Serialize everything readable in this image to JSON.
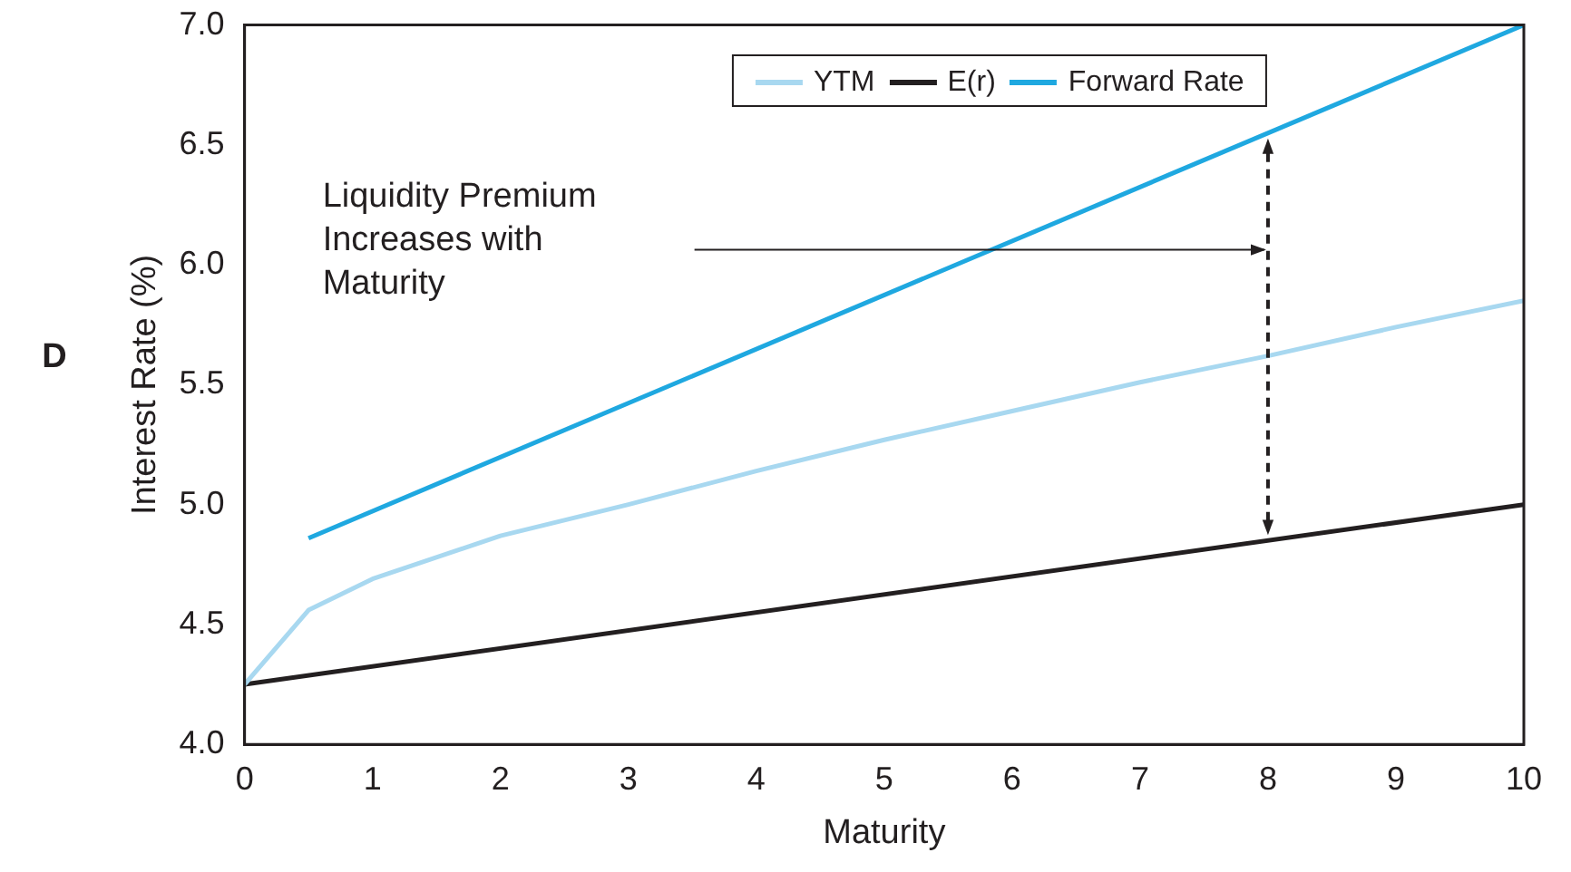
{
  "chart_data": {
    "type": "line",
    "xlabel": "Maturity",
    "ylabel": "Interest Rate (%)",
    "xlim": [
      0,
      10
    ],
    "xticks": [
      0,
      1,
      2,
      3,
      4,
      5,
      6,
      7,
      8,
      9,
      10
    ],
    "ylim": [
      4.0,
      7.0
    ],
    "yticks": [
      {
        "value": 4.0,
        "label": "4.0"
      },
      {
        "value": 4.5,
        "label": "4.5"
      },
      {
        "value": 5.0,
        "label": "5.0"
      },
      {
        "value": 5.5,
        "label": "5.5"
      },
      {
        "value": 6.0,
        "label": "6.0"
      },
      {
        "value": 6.5,
        "label": "6.5"
      },
      {
        "value": 7.0,
        "label": "7.0"
      }
    ],
    "series": [
      {
        "name": "YTM",
        "color": "#a8d8f0",
        "x": [
          0,
          0.5,
          1,
          2,
          3,
          4,
          5,
          6,
          7,
          8,
          9,
          10
        ],
        "values": [
          4.25,
          4.56,
          4.69,
          4.87,
          5.0,
          5.14,
          5.27,
          5.39,
          5.51,
          5.62,
          5.74,
          5.85
        ]
      },
      {
        "name": "E(r)",
        "color": "#231f20",
        "x": [
          0,
          10
        ],
        "values": [
          4.25,
          5.0
        ]
      },
      {
        "name": "Forward Rate",
        "color": "#1fa8e0",
        "x": [
          0.5,
          10
        ],
        "values": [
          4.86,
          7.0
        ]
      }
    ],
    "annotations": [
      "D",
      "Liquidity Premium\nIncreases with\nMaturity"
    ],
    "legend": "top",
    "grid": false,
    "marker": "none",
    "line_style": "solid"
  }
}
